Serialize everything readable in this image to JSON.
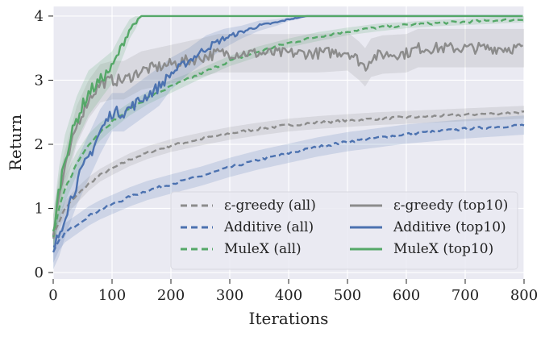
{
  "chart_data": {
    "type": "line",
    "title": "",
    "xlabel": "Iterations",
    "ylabel": "Return",
    "xlim": [
      0,
      800
    ],
    "ylim": [
      -0.1,
      4.15
    ],
    "xticks": [
      0,
      100,
      200,
      300,
      400,
      500,
      600,
      700,
      800
    ],
    "yticks": [
      0,
      1,
      2,
      3,
      4
    ],
    "grid": true,
    "background": "#eaeaf2",
    "legend": {
      "placement": "lower-right",
      "columns": 2
    },
    "series": [
      {
        "name": "ε-greedy (all)",
        "color": "#8c8c8c",
        "style": "dashed",
        "x": [
          0,
          10,
          20,
          40,
          60,
          80,
          100,
          130,
          160,
          200,
          250,
          300,
          350,
          400,
          450,
          500,
          550,
          600,
          650,
          700,
          750,
          800
        ],
        "y": [
          0.55,
          0.8,
          1.0,
          1.2,
          1.38,
          1.52,
          1.62,
          1.76,
          1.87,
          1.98,
          2.08,
          2.17,
          2.24,
          2.3,
          2.34,
          2.37,
          2.4,
          2.42,
          2.44,
          2.46,
          2.48,
          2.5
        ],
        "band": [
          0.1,
          0.12,
          0.12,
          0.12,
          0.11,
          0.1,
          0.1,
          0.1,
          0.1,
          0.1,
          0.1,
          0.1,
          0.1,
          0.1,
          0.1,
          0.1,
          0.1,
          0.1,
          0.1,
          0.1,
          0.1,
          0.1
        ]
      },
      {
        "name": "Additive (all)",
        "color": "#4c72b0",
        "style": "dashed",
        "x": [
          0,
          10,
          20,
          40,
          60,
          80,
          100,
          130,
          160,
          200,
          250,
          300,
          350,
          400,
          450,
          500,
          550,
          600,
          650,
          700,
          750,
          800
        ],
        "y": [
          0.3,
          0.5,
          0.62,
          0.75,
          0.88,
          0.98,
          1.06,
          1.18,
          1.28,
          1.38,
          1.5,
          1.64,
          1.76,
          1.86,
          1.96,
          2.04,
          2.1,
          2.16,
          2.2,
          2.24,
          2.27,
          2.3
        ],
        "band": [
          0.15,
          0.15,
          0.15,
          0.15,
          0.15,
          0.15,
          0.15,
          0.15,
          0.15,
          0.15,
          0.15,
          0.15,
          0.15,
          0.15,
          0.15,
          0.15,
          0.15,
          0.15,
          0.15,
          0.15,
          0.15,
          0.15
        ]
      },
      {
        "name": "MuleX (all)",
        "color": "#55a868",
        "style": "dashed",
        "x": [
          0,
          10,
          20,
          40,
          60,
          80,
          100,
          130,
          160,
          200,
          250,
          300,
          350,
          400,
          450,
          500,
          550,
          600,
          650,
          700,
          750,
          800
        ],
        "y": [
          0.55,
          1.0,
          1.3,
          1.7,
          2.0,
          2.2,
          2.35,
          2.55,
          2.72,
          2.9,
          3.1,
          3.3,
          3.45,
          3.58,
          3.68,
          3.76,
          3.82,
          3.86,
          3.89,
          3.91,
          3.93,
          3.95
        ],
        "band": [
          0.2,
          0.2,
          0.2,
          0.18,
          0.16,
          0.14,
          0.12,
          0.1,
          0.1,
          0.1,
          0.08,
          0.08,
          0.08,
          0.07,
          0.07,
          0.06,
          0.06,
          0.05,
          0.05,
          0.05,
          0.05,
          0.05
        ]
      },
      {
        "name": "ε-greedy (top10)",
        "color": "#8c8c8c",
        "style": "solid",
        "x": [
          0,
          10,
          20,
          40,
          60,
          80,
          100,
          120,
          150,
          200,
          250,
          280,
          300,
          350,
          400,
          450,
          500,
          520,
          530,
          540,
          560,
          600,
          620,
          650,
          700,
          800
        ],
        "y": [
          0.6,
          1.2,
          1.6,
          2.3,
          2.7,
          2.95,
          3.0,
          3.0,
          3.15,
          3.25,
          3.35,
          3.42,
          3.42,
          3.42,
          3.42,
          3.42,
          3.45,
          3.3,
          3.2,
          3.35,
          3.4,
          3.42,
          3.5,
          3.5,
          3.5,
          3.5
        ],
        "band": [
          0.3,
          0.3,
          0.3,
          0.3,
          0.3,
          0.3,
          0.3,
          0.3,
          0.3,
          0.3,
          0.3,
          0.3,
          0.3,
          0.3,
          0.3,
          0.3,
          0.3,
          0.3,
          0.3,
          0.3,
          0.3,
          0.3,
          0.3,
          0.3,
          0.3,
          0.3
        ]
      },
      {
        "name": "Additive (top10)",
        "color": "#4c72b0",
        "style": "solid",
        "x": [
          0,
          10,
          20,
          40,
          60,
          80,
          100,
          120,
          150,
          180,
          200,
          230,
          260,
          290,
          320,
          350,
          380,
          400,
          420,
          430,
          450,
          500,
          550,
          600,
          620,
          650,
          700,
          800
        ],
        "y": [
          0.35,
          0.6,
          0.9,
          1.4,
          1.8,
          2.2,
          2.5,
          2.5,
          2.7,
          2.9,
          3.1,
          3.3,
          3.5,
          3.65,
          3.75,
          3.85,
          3.9,
          3.95,
          3.98,
          4.0,
          4.0,
          4.0,
          4.0,
          4.0,
          4.0,
          4.0,
          4.0,
          4.0
        ],
        "band": [
          0.3,
          0.35,
          0.35,
          0.35,
          0.35,
          0.35,
          0.3,
          0.3,
          0.3,
          0.3,
          0.25,
          0.2,
          0.2,
          0.15,
          0.1,
          0.08,
          0.05,
          0.03,
          0.02,
          0.0,
          0.0,
          0.0,
          0.0,
          0.0,
          0.0,
          0.0,
          0.0,
          0.0
        ]
      },
      {
        "name": "MuleX (top10)",
        "color": "#55a868",
        "style": "solid",
        "x": [
          0,
          10,
          20,
          40,
          60,
          80,
          100,
          120,
          130,
          140,
          150,
          160,
          200,
          250,
          300,
          400,
          500,
          600,
          700,
          800
        ],
        "y": [
          0.6,
          1.3,
          1.8,
          2.4,
          2.8,
          3.0,
          3.2,
          3.6,
          3.8,
          3.9,
          4.0,
          4.0,
          4.0,
          4.0,
          4.0,
          4.0,
          4.0,
          4.0,
          4.0,
          4.0
        ],
        "band": [
          0.3,
          0.35,
          0.35,
          0.35,
          0.35,
          0.3,
          0.25,
          0.2,
          0.15,
          0.1,
          0.0,
          0.0,
          0.0,
          0.0,
          0.0,
          0.0,
          0.0,
          0.0,
          0.0,
          0.0
        ]
      }
    ]
  }
}
